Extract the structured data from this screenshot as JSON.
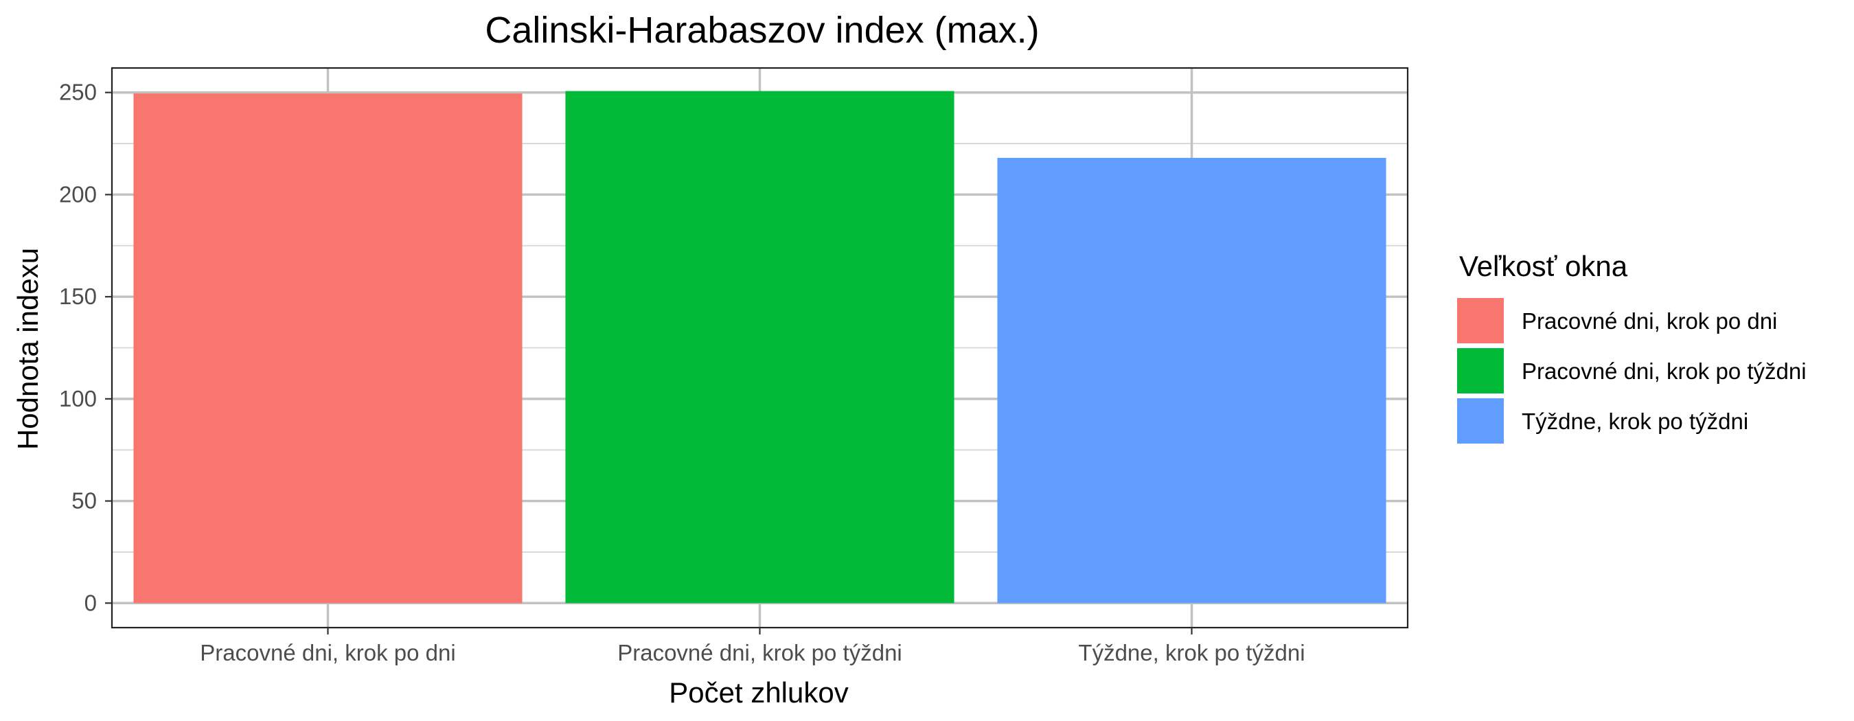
{
  "chart_data": {
    "type": "bar",
    "title": "Calinski-Harabaszov index (max.)",
    "xlabel": "Počet zhlukov",
    "ylabel": "Hodnota indexu",
    "categories": [
      "Pracovné dni, krok po dni",
      "Pracovné dni, krok po týždni",
      "Týždne, krok po týždni"
    ],
    "values": [
      249.5,
      250.7,
      218.0
    ],
    "colors": [
      "#F8766D",
      "#00BA38",
      "#619CFF"
    ],
    "ylim": [
      -12,
      262
    ],
    "yticks": [
      0,
      50,
      100,
      150,
      200,
      250
    ],
    "grid": true,
    "legend": {
      "title": "Veľkosť okna",
      "position": "right",
      "entries": [
        "Pracovné dni, krok po dni",
        "Pracovné dni, krok po týždni",
        "Týždne, krok po týždni"
      ]
    }
  }
}
